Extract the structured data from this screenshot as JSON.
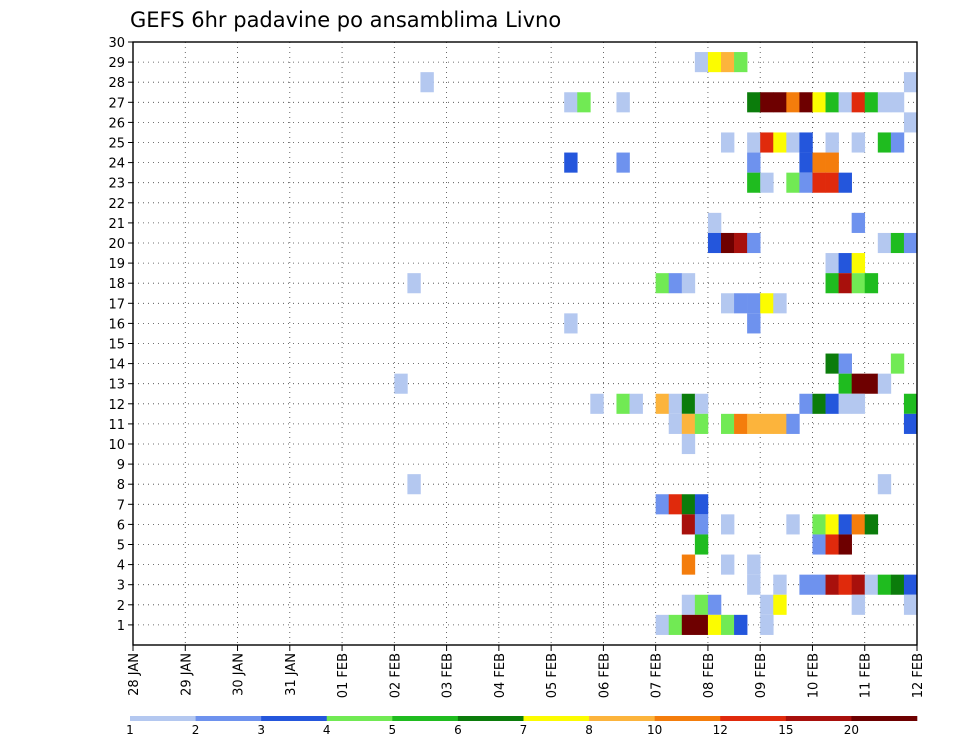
{
  "chart_data": {
    "type": "heatmap",
    "title": "GEFS 6hr padavine po ansamblima Livno",
    "y_ticks": [
      "1",
      "2",
      "3",
      "4",
      "5",
      "6",
      "7",
      "8",
      "9",
      "10",
      "11",
      "12",
      "13",
      "14",
      "15",
      "16",
      "17",
      "18",
      "19",
      "20",
      "21",
      "22",
      "23",
      "24",
      "25",
      "26",
      "27",
      "28",
      "29",
      "30"
    ],
    "x_ticks": [
      "28 JAN",
      "29 JAN",
      "30 JAN",
      "31 JAN",
      "01 FEB",
      "02 FEB",
      "03 FEB",
      "04 FEB",
      "05 FEB",
      "06 FEB",
      "07 FEB",
      "08 FEB",
      "09 FEB",
      "10 FEB",
      "11 FEB",
      "12 FEB"
    ],
    "ylim": [
      0,
      30
    ],
    "x_steps": 60,
    "steps_per_day": 4,
    "grid": true,
    "colorbar": {
      "colors": [
        "#b4c8f0",
        "#6e92ee",
        "#2456dc",
        "#71ea54",
        "#1fbc1f",
        "#0b7c0b",
        "#fcfc00",
        "#fcb43c",
        "#f47d0c",
        "#e02a0c",
        "#a8100c",
        "#6e0000"
      ],
      "labels": [
        "1",
        "2",
        "3",
        "4",
        "5",
        "6",
        "7",
        "8",
        "10",
        "12",
        "15",
        "20"
      ]
    },
    "cells": [
      [
        29,
        43,
        1
      ],
      [
        29,
        44,
        7
      ],
      [
        29,
        45,
        8
      ],
      [
        29,
        46,
        4
      ],
      [
        28,
        22,
        1
      ],
      [
        28,
        59,
        1
      ],
      [
        27,
        33,
        1
      ],
      [
        27,
        34,
        4
      ],
      [
        27,
        37,
        1
      ],
      [
        27,
        47,
        6
      ],
      [
        27,
        48,
        12
      ],
      [
        27,
        49,
        12
      ],
      [
        27,
        50,
        9
      ],
      [
        27,
        51,
        12
      ],
      [
        27,
        52,
        7
      ],
      [
        27,
        53,
        5
      ],
      [
        27,
        54,
        1
      ],
      [
        27,
        55,
        10
      ],
      [
        27,
        56,
        5
      ],
      [
        27,
        57,
        1
      ],
      [
        27,
        58,
        1
      ],
      [
        26,
        59,
        1
      ],
      [
        25,
        45,
        1
      ],
      [
        25,
        47,
        1
      ],
      [
        25,
        48,
        10
      ],
      [
        25,
        49,
        7
      ],
      [
        25,
        50,
        1
      ],
      [
        25,
        51,
        3
      ],
      [
        25,
        53,
        1
      ],
      [
        25,
        55,
        1
      ],
      [
        25,
        57,
        5
      ],
      [
        25,
        58,
        2
      ],
      [
        24,
        33,
        3
      ],
      [
        24,
        37,
        2
      ],
      [
        24,
        47,
        2
      ],
      [
        24,
        51,
        3
      ],
      [
        24,
        52,
        9
      ],
      [
        24,
        53,
        9
      ],
      [
        23,
        47,
        5
      ],
      [
        23,
        48,
        1
      ],
      [
        23,
        50,
        4
      ],
      [
        23,
        51,
        2
      ],
      [
        23,
        52,
        10
      ],
      [
        23,
        53,
        10
      ],
      [
        23,
        54,
        3
      ],
      [
        21,
        44,
        1
      ],
      [
        21,
        55,
        2
      ],
      [
        20,
        44,
        3
      ],
      [
        20,
        45,
        12
      ],
      [
        20,
        46,
        11
      ],
      [
        20,
        47,
        2
      ],
      [
        20,
        57,
        1
      ],
      [
        20,
        58,
        5
      ],
      [
        20,
        59,
        2
      ],
      [
        19,
        53,
        1
      ],
      [
        19,
        54,
        3
      ],
      [
        19,
        55,
        7
      ],
      [
        18,
        21,
        1
      ],
      [
        18,
        40,
        4
      ],
      [
        18,
        41,
        2
      ],
      [
        18,
        42,
        1
      ],
      [
        18,
        53,
        5
      ],
      [
        18,
        54,
        11
      ],
      [
        18,
        55,
        4
      ],
      [
        18,
        56,
        5
      ],
      [
        17,
        45,
        1
      ],
      [
        17,
        46,
        2
      ],
      [
        17,
        47,
        2
      ],
      [
        17,
        48,
        7
      ],
      [
        17,
        49,
        1
      ],
      [
        16,
        33,
        1
      ],
      [
        16,
        47,
        2
      ],
      [
        14,
        53,
        6
      ],
      [
        14,
        54,
        2
      ],
      [
        14,
        58,
        4
      ],
      [
        13,
        20,
        1
      ],
      [
        13,
        54,
        5
      ],
      [
        13,
        55,
        12
      ],
      [
        13,
        56,
        12
      ],
      [
        13,
        57,
        1
      ],
      [
        12,
        35,
        1
      ],
      [
        12,
        37,
        4
      ],
      [
        12,
        38,
        1
      ],
      [
        12,
        40,
        8
      ],
      [
        12,
        41,
        1
      ],
      [
        12,
        42,
        6
      ],
      [
        12,
        43,
        1
      ],
      [
        12,
        51,
        2
      ],
      [
        12,
        52,
        6
      ],
      [
        12,
        53,
        3
      ],
      [
        12,
        54,
        1
      ],
      [
        12,
        55,
        1
      ],
      [
        12,
        59,
        5
      ],
      [
        11,
        41,
        1
      ],
      [
        11,
        42,
        8
      ],
      [
        11,
        43,
        4
      ],
      [
        11,
        45,
        4
      ],
      [
        11,
        46,
        9
      ],
      [
        11,
        47,
        8
      ],
      [
        11,
        48,
        8
      ],
      [
        11,
        49,
        8
      ],
      [
        11,
        50,
        2
      ],
      [
        11,
        59,
        3
      ],
      [
        10,
        42,
        1
      ],
      [
        8,
        21,
        1
      ],
      [
        8,
        57,
        1
      ],
      [
        7,
        40,
        2
      ],
      [
        7,
        41,
        10
      ],
      [
        7,
        42,
        6
      ],
      [
        7,
        43,
        3
      ],
      [
        6,
        42,
        11
      ],
      [
        6,
        43,
        2
      ],
      [
        6,
        45,
        1
      ],
      [
        6,
        50,
        1
      ],
      [
        6,
        52,
        4
      ],
      [
        6,
        53,
        7
      ],
      [
        6,
        54,
        3
      ],
      [
        6,
        55,
        9
      ],
      [
        6,
        56,
        6
      ],
      [
        5,
        43,
        5
      ],
      [
        5,
        52,
        2
      ],
      [
        5,
        53,
        10
      ],
      [
        5,
        54,
        12
      ],
      [
        4,
        42,
        9
      ],
      [
        4,
        45,
        1
      ],
      [
        4,
        47,
        1
      ],
      [
        3,
        47,
        1
      ],
      [
        3,
        49,
        1
      ],
      [
        3,
        51,
        2
      ],
      [
        3,
        52,
        2
      ],
      [
        3,
        53,
        11
      ],
      [
        3,
        54,
        10
      ],
      [
        3,
        55,
        11
      ],
      [
        3,
        56,
        1
      ],
      [
        3,
        57,
        5
      ],
      [
        3,
        58,
        6
      ],
      [
        3,
        59,
        3
      ],
      [
        2,
        42,
        1
      ],
      [
        2,
        43,
        4
      ],
      [
        2,
        44,
        2
      ],
      [
        2,
        48,
        1
      ],
      [
        2,
        49,
        7
      ],
      [
        2,
        55,
        1
      ],
      [
        2,
        59,
        1
      ],
      [
        1,
        40,
        1
      ],
      [
        1,
        41,
        4
      ],
      [
        1,
        42,
        12
      ],
      [
        1,
        43,
        12
      ],
      [
        1,
        44,
        7
      ],
      [
        1,
        45,
        4
      ],
      [
        1,
        46,
        3
      ],
      [
        1,
        48,
        1
      ]
    ]
  }
}
